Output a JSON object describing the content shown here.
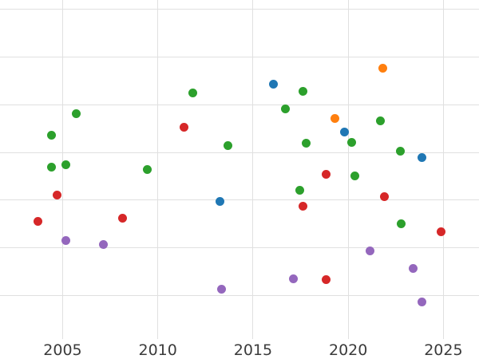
{
  "chart_data": {
    "type": "scatter",
    "title": "",
    "xlabel": "",
    "ylabel": "",
    "xlim": [
      2001.71,
      2026.87
    ],
    "ylim": [
      -0.88,
      6.2
    ],
    "x_ticks": [
      2005,
      2010,
      2015,
      2020,
      2025
    ],
    "x_tick_labels": [
      "2005",
      "2010",
      "2015",
      "2020",
      "2025"
    ],
    "y_ticks": [
      0,
      1,
      2,
      3,
      4,
      5,
      6
    ],
    "y_tick_labels": [],
    "grid": true,
    "legend_position": "none",
    "marker_diameter_px": 11,
    "series": [
      {
        "name": "green",
        "color": "#2ca02c",
        "points": [
          [
            2004.43,
            3.37
          ],
          [
            2004.43,
            2.7
          ],
          [
            2005.15,
            2.75
          ],
          [
            2005.72,
            3.82
          ],
          [
            2009.44,
            2.64
          ],
          [
            2011.83,
            4.25
          ],
          [
            2013.67,
            3.15
          ],
          [
            2016.69,
            3.92
          ],
          [
            2017.44,
            2.2
          ],
          [
            2017.64,
            4.29
          ],
          [
            2017.78,
            3.19
          ],
          [
            2020.17,
            3.21
          ],
          [
            2020.37,
            2.51
          ],
          [
            2021.7,
            3.67
          ],
          [
            2022.73,
            3.02
          ],
          [
            2022.8,
            1.51
          ]
        ]
      },
      {
        "name": "red",
        "color": "#d62728",
        "points": [
          [
            2003.71,
            1.56
          ],
          [
            2004.71,
            2.1
          ],
          [
            2008.15,
            1.63
          ],
          [
            2011.37,
            3.53
          ],
          [
            2017.64,
            1.87
          ],
          [
            2018.82,
            0.33
          ],
          [
            2018.83,
            2.55
          ],
          [
            2021.89,
            2.07
          ],
          [
            2024.88,
            1.34
          ]
        ]
      },
      {
        "name": "blue",
        "color": "#1f77b4",
        "points": [
          [
            2013.27,
            1.97
          ],
          [
            2016.07,
            4.43
          ],
          [
            2019.82,
            3.43
          ],
          [
            2023.88,
            2.89
          ]
        ]
      },
      {
        "name": "orange",
        "color": "#ff7f0e",
        "points": [
          [
            2019.29,
            3.71
          ],
          [
            2021.8,
            4.77
          ]
        ]
      },
      {
        "name": "purple",
        "color": "#9467bd",
        "points": [
          [
            2005.15,
            1.16
          ],
          [
            2007.16,
            1.07
          ],
          [
            2013.36,
            0.14
          ],
          [
            2017.13,
            0.35
          ],
          [
            2021.16,
            0.94
          ],
          [
            2023.43,
            0.56
          ],
          [
            2023.89,
            -0.14
          ]
        ]
      }
    ]
  },
  "style": {
    "background_color": "#ffffff",
    "grid_color": "#e0e0e0",
    "tick_label_color": "#3b3b3b"
  }
}
